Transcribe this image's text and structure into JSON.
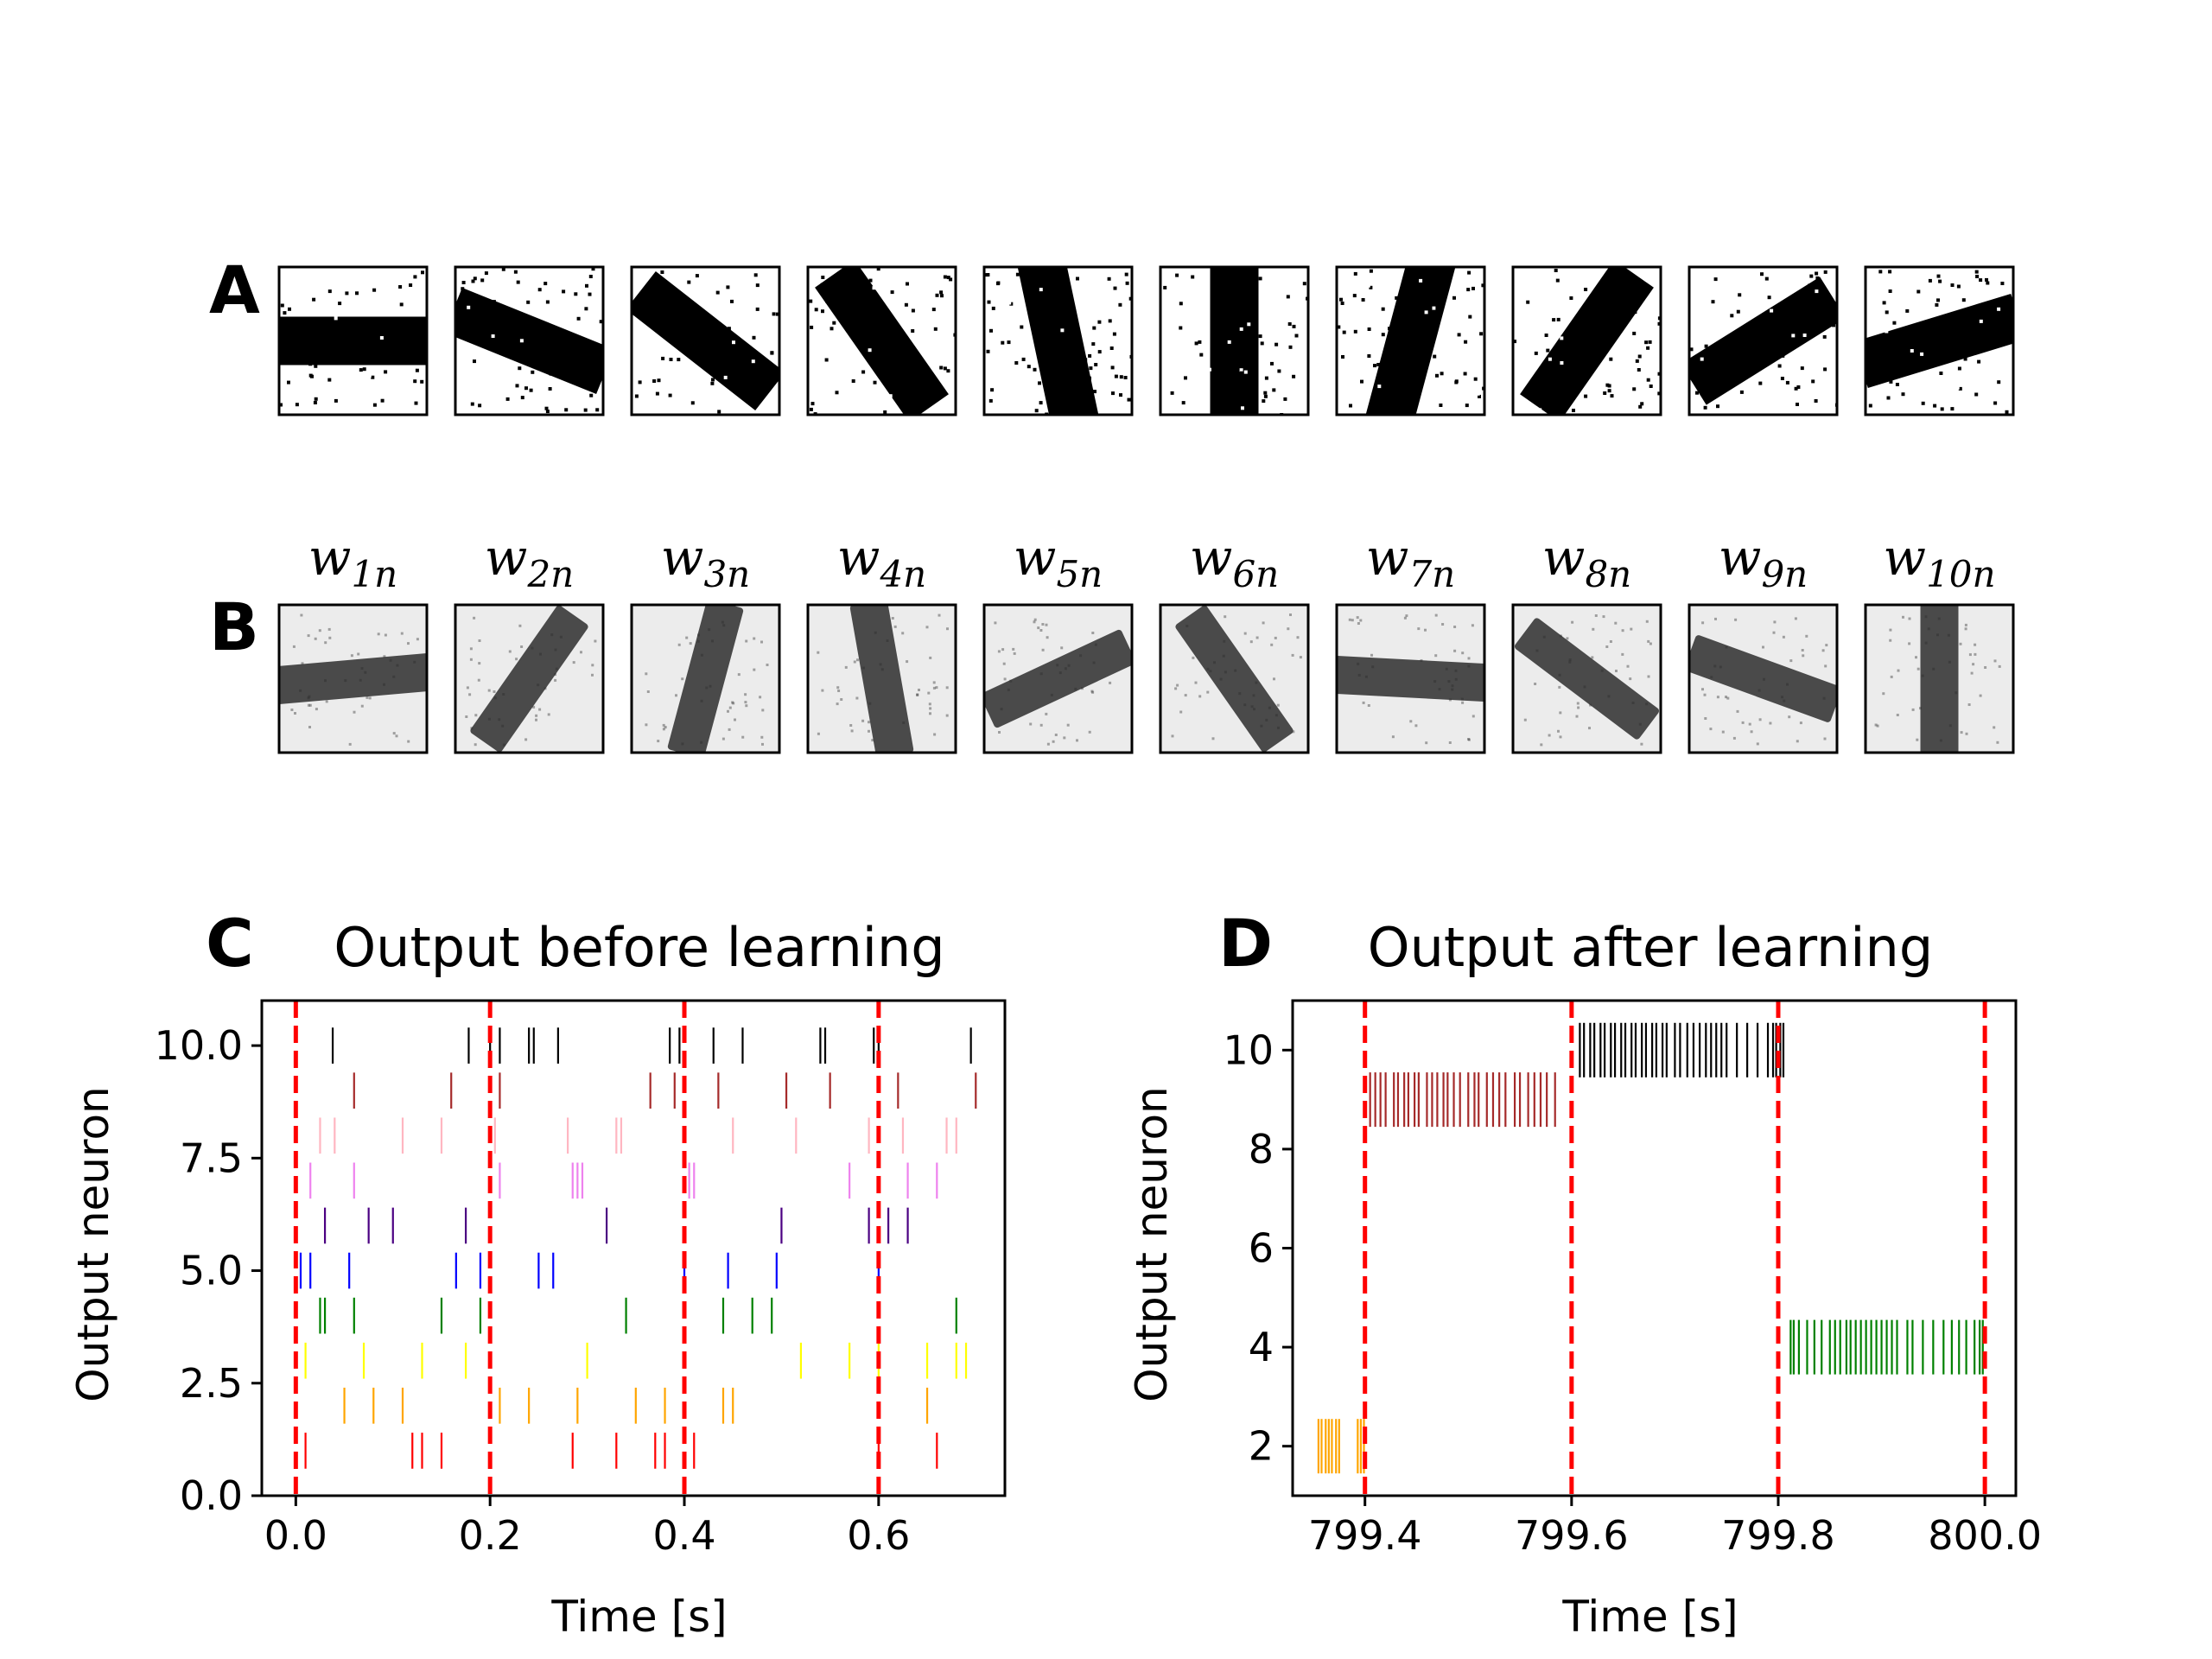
{
  "panels": {
    "A": {
      "letter": "A"
    },
    "B": {
      "letter": "B",
      "labels": [
        {
          "base": "w",
          "sub": "1n"
        },
        {
          "base": "w",
          "sub": "2n"
        },
        {
          "base": "w",
          "sub": "3n"
        },
        {
          "base": "w",
          "sub": "4n"
        },
        {
          "base": "w",
          "sub": "5n"
        },
        {
          "base": "w",
          "sub": "6n"
        },
        {
          "base": "w",
          "sub": "7n"
        },
        {
          "base": "w",
          "sub": "8n"
        },
        {
          "base": "w",
          "sub": "9n"
        },
        {
          "base": "w",
          "sub": "10n"
        }
      ]
    },
    "C": {
      "letter": "C"
    },
    "D": {
      "letter": "D"
    }
  },
  "images": {
    "A_bar_angles_deg": [
      0,
      22,
      38,
      55,
      78,
      90,
      105,
      125,
      148,
      163
    ],
    "B_bar_angles_deg": [
      175,
      125,
      105,
      80,
      155,
      55,
      3,
      37,
      20,
      90
    ]
  },
  "chart_data": [
    {
      "type": "scatter",
      "title": "Output before learning",
      "xlabel": "Time [s]",
      "ylabel": "Output neuron",
      "xlim": [
        -0.035,
        0.73
      ],
      "ylim": [
        0.0,
        11.0
      ],
      "xticks": [
        "0.0",
        "0.2",
        "0.4",
        "0.6"
      ],
      "xtick_values": [
        0.0,
        0.2,
        0.4,
        0.6
      ],
      "yticks": [
        "0.0",
        "2.5",
        "5.0",
        "7.5",
        "10.0"
      ],
      "ytick_values": [
        0.0,
        2.5,
        5.0,
        7.5,
        10.0
      ],
      "vlines": [
        0.0,
        0.2,
        0.4,
        0.6
      ],
      "vline_color": "#ff0000",
      "series": [
        {
          "neuron": 1,
          "color": "#ff0000",
          "spikes": [
            0.01,
            0.12,
            0.13,
            0.15,
            0.285,
            0.33,
            0.37,
            0.38,
            0.41,
            0.6,
            0.66
          ]
        },
        {
          "neuron": 2,
          "color": "#ffa500",
          "spikes": [
            0.05,
            0.08,
            0.11,
            0.21,
            0.24,
            0.29,
            0.35,
            0.38,
            0.44,
            0.45,
            0.65
          ]
        },
        {
          "neuron": 3,
          "color": "#ffff00",
          "spikes": [
            0.01,
            0.07,
            0.13,
            0.175,
            0.3,
            0.52,
            0.57,
            0.6,
            0.65,
            0.68,
            0.69
          ]
        },
        {
          "neuron": 4,
          "color": "#008000",
          "spikes": [
            0.025,
            0.03,
            0.06,
            0.15,
            0.19,
            0.34,
            0.44,
            0.47,
            0.49,
            0.68
          ]
        },
        {
          "neuron": 5,
          "color": "#0000ff",
          "spikes": [
            0.005,
            0.015,
            0.055,
            0.165,
            0.19,
            0.25,
            0.265,
            0.4,
            0.445,
            0.495,
            0.6
          ]
        },
        {
          "neuron": 6,
          "color": "#4b0082",
          "spikes": [
            0.03,
            0.075,
            0.1,
            0.175,
            0.32,
            0.5,
            0.59,
            0.61,
            0.63
          ]
        },
        {
          "neuron": 7,
          "color": "#ee82ee",
          "spikes": [
            0.015,
            0.06,
            0.21,
            0.285,
            0.29,
            0.295,
            0.405,
            0.41,
            0.57,
            0.63,
            0.66
          ]
        },
        {
          "neuron": 8,
          "color": "#ffb6c1",
          "spikes": [
            0.025,
            0.04,
            0.11,
            0.15,
            0.205,
            0.28,
            0.33,
            0.335,
            0.45,
            0.515,
            0.59,
            0.625,
            0.67,
            0.68
          ]
        },
        {
          "neuron": 9,
          "color": "#a52a2a",
          "spikes": [
            0.06,
            0.16,
            0.21,
            0.365,
            0.39,
            0.435,
            0.505,
            0.55,
            0.62,
            0.7
          ]
        },
        {
          "neuron": 10,
          "color": "#000000",
          "spikes": [
            0.038,
            0.178,
            0.2,
            0.21,
            0.24,
            0.245,
            0.27,
            0.385,
            0.395,
            0.43,
            0.46,
            0.54,
            0.545,
            0.595,
            0.6,
            0.695
          ]
        }
      ]
    },
    {
      "type": "scatter",
      "title": "Output after learning",
      "xlabel": "Time [s]",
      "ylabel": "Output neuron",
      "xlim": [
        799.33,
        800.03
      ],
      "ylim": [
        1.0,
        11.0
      ],
      "xticks": [
        "799.4",
        "799.6",
        "799.8",
        "800.0"
      ],
      "xtick_values": [
        799.4,
        799.6,
        799.8,
        800.0
      ],
      "yticks": [
        "2",
        "4",
        "6",
        "8",
        "10"
      ],
      "ytick_values": [
        2,
        4,
        6,
        8,
        10
      ],
      "vlines": [
        799.4,
        799.6,
        799.8,
        800.0
      ],
      "vline_color": "#ff0000",
      "series": [
        {
          "neuron": 2,
          "color": "#ffa500",
          "spikes": [
            799.355,
            799.358,
            799.362,
            799.365,
            799.368,
            799.372,
            799.375,
            799.393,
            799.396,
            799.399
          ]
        },
        {
          "neuron": 9,
          "color": "#a52a2a",
          "spikes": [
            799.405,
            799.41,
            799.415,
            799.42,
            799.428,
            799.432,
            799.438,
            799.442,
            799.448,
            799.452,
            799.46,
            799.465,
            799.47,
            799.476,
            799.48,
            799.486,
            799.492,
            799.5,
            799.506,
            799.51,
            799.518,
            799.524,
            799.53,
            799.536,
            799.545,
            799.55,
            799.558,
            799.564,
            799.57,
            799.576,
            799.584
          ]
        },
        {
          "neuron": 10,
          "color": "#000000",
          "spikes": [
            799.608,
            799.612,
            799.618,
            799.622,
            799.628,
            799.632,
            799.638,
            799.642,
            799.648,
            799.652,
            799.658,
            799.662,
            799.668,
            799.672,
            799.678,
            799.682,
            799.688,
            799.692,
            799.7,
            799.705,
            799.712,
            799.718,
            799.724,
            799.73,
            799.735,
            799.74,
            799.745,
            799.75,
            799.76,
            799.77,
            799.78,
            799.79,
            799.795,
            799.798,
            799.802,
            799.805
          ]
        },
        {
          "neuron": 4,
          "color": "#008000",
          "spikes": [
            799.812,
            799.815,
            799.82,
            799.828,
            799.835,
            799.842,
            799.85,
            799.855,
            799.86,
            799.866,
            799.87,
            799.875,
            799.88,
            799.885,
            799.89,
            799.895,
            799.9,
            799.905,
            799.91,
            799.915,
            799.925,
            799.93,
            799.94,
            799.95,
            799.96,
            799.968,
            799.975,
            799.982,
            799.99,
            799.995,
            799.998
          ]
        }
      ]
    }
  ]
}
